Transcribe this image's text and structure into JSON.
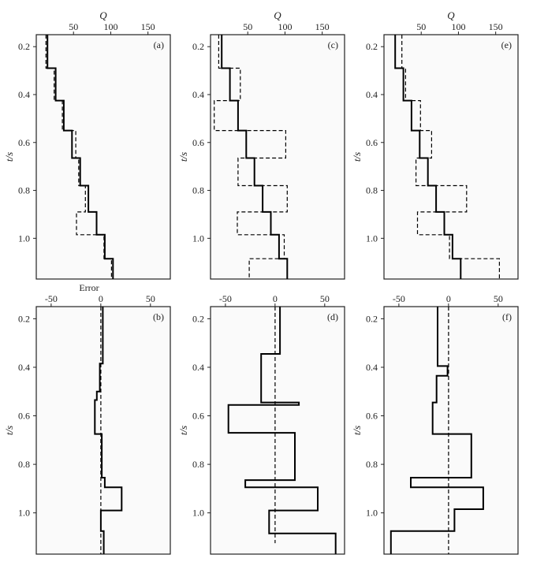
{
  "chart_data": [
    {
      "type": "line",
      "panel_label": "(a)",
      "xlabel": "Q",
      "ylabel": "t/s",
      "xlim": [
        0,
        180
      ],
      "xticks": [
        50,
        100,
        150
      ],
      "ylim": [
        1.17,
        0.15
      ],
      "yticks": [
        0.2,
        0.4,
        0.6,
        0.8,
        1.0
      ],
      "series": [
        {
          "style": "solid",
          "points": [
            [
              15,
              0.15
            ],
            [
              15,
              0.29
            ],
            [
              26,
              0.29
            ],
            [
              26,
              0.425
            ],
            [
              37,
              0.425
            ],
            [
              37,
              0.55
            ],
            [
              48,
              0.55
            ],
            [
              48,
              0.665
            ],
            [
              59,
              0.665
            ],
            [
              59,
              0.78
            ],
            [
              70,
              0.78
            ],
            [
              70,
              0.89
            ],
            [
              81,
              0.89
            ],
            [
              81,
              0.985
            ],
            [
              92,
              0.985
            ],
            [
              92,
              1.085
            ],
            [
              103,
              1.085
            ],
            [
              103,
              1.17
            ]
          ]
        },
        {
          "style": "dashed",
          "points": [
            [
              13,
              0.15
            ],
            [
              13,
              0.29
            ],
            [
              24,
              0.29
            ],
            [
              24,
              0.425
            ],
            [
              35,
              0.425
            ],
            [
              35,
              0.55
            ],
            [
              53,
              0.55
            ],
            [
              53,
              0.665
            ],
            [
              57,
              0.665
            ],
            [
              57,
              0.78
            ],
            [
              66,
              0.78
            ],
            [
              66,
              0.89
            ],
            [
              54,
              0.89
            ],
            [
              54,
              0.985
            ],
            [
              91,
              0.985
            ],
            [
              91,
              1.085
            ],
            [
              101,
              1.085
            ],
            [
              101,
              1.17
            ]
          ]
        }
      ]
    },
    {
      "type": "line",
      "panel_label": "(b)",
      "xlabel": "Error",
      "ylabel": "t/s",
      "xlim": [
        -65,
        70
      ],
      "xticks": [
        -50,
        0,
        50
      ],
      "ylim": [
        1.17,
        0.15
      ],
      "yticks": [
        0.2,
        0.4,
        0.6,
        0.8,
        1.0
      ],
      "series": [
        {
          "style": "solid",
          "points": [
            [
              2,
              0.15
            ],
            [
              2,
              0.385
            ],
            [
              -1,
              0.385
            ],
            [
              -1,
              0.5
            ],
            [
              -4,
              0.5
            ],
            [
              -4,
              0.535
            ],
            [
              -6,
              0.535
            ],
            [
              -6,
              0.675
            ],
            [
              1,
              0.675
            ],
            [
              1,
              0.855
            ],
            [
              4,
              0.855
            ],
            [
              4,
              0.895
            ],
            [
              21,
              0.895
            ],
            [
              21,
              0.99
            ],
            [
              0,
              0.99
            ],
            [
              0,
              1.075
            ],
            [
              3,
              1.075
            ],
            [
              3,
              1.17
            ]
          ]
        },
        {
          "style": "dashed",
          "points": [
            [
              0,
              0.15
            ],
            [
              0,
              1.17
            ]
          ]
        }
      ]
    },
    {
      "type": "line",
      "panel_label": "(c)",
      "xlabel": "Q",
      "ylabel": "t/s",
      "xlim": [
        0,
        180
      ],
      "xticks": [
        50,
        100,
        150
      ],
      "ylim": [
        1.17,
        0.15
      ],
      "yticks": [
        0.2,
        0.4,
        0.6,
        0.8,
        1.0
      ],
      "series": [
        {
          "style": "solid",
          "points": [
            [
              15,
              0.15
            ],
            [
              15,
              0.29
            ],
            [
              26,
              0.29
            ],
            [
              26,
              0.425
            ],
            [
              37,
              0.425
            ],
            [
              37,
              0.55
            ],
            [
              48,
              0.55
            ],
            [
              48,
              0.665
            ],
            [
              59,
              0.665
            ],
            [
              59,
              0.78
            ],
            [
              70,
              0.78
            ],
            [
              70,
              0.89
            ],
            [
              81,
              0.89
            ],
            [
              81,
              0.985
            ],
            [
              92,
              0.985
            ],
            [
              92,
              1.085
            ],
            [
              103,
              1.085
            ],
            [
              103,
              1.17
            ]
          ]
        },
        {
          "style": "dashed",
          "points": [
            [
              11,
              0.15
            ],
            [
              11,
              0.29
            ],
            [
              40,
              0.29
            ],
            [
              40,
              0.425
            ],
            [
              5,
              0.425
            ],
            [
              5,
              0.55
            ],
            [
              101,
              0.55
            ],
            [
              101,
              0.665
            ],
            [
              37,
              0.665
            ],
            [
              37,
              0.78
            ],
            [
              103,
              0.78
            ],
            [
              103,
              0.89
            ],
            [
              36,
              0.89
            ],
            [
              36,
              0.985
            ],
            [
              99,
              0.985
            ],
            [
              99,
              1.085
            ],
            [
              52,
              1.085
            ],
            [
              52,
              1.17
            ]
          ]
        }
      ]
    },
    {
      "type": "line",
      "panel_label": "(d)",
      "xlabel": "",
      "ylabel": "t/s",
      "xlim": [
        -65,
        70
      ],
      "xticks": [
        -50,
        0,
        50
      ],
      "ylim": [
        1.17,
        0.15
      ],
      "yticks": [
        0.2,
        0.4,
        0.6,
        0.8,
        1.0
      ],
      "series": [
        {
          "style": "solid",
          "points": [
            [
              5,
              0.15
            ],
            [
              5,
              0.345
            ],
            [
              -14,
              0.345
            ],
            [
              -14,
              0.545
            ],
            [
              24,
              0.545
            ],
            [
              24,
              0.555
            ],
            [
              -47,
              0.555
            ],
            [
              -47,
              0.67
            ],
            [
              20,
              0.67
            ],
            [
              20,
              0.865
            ],
            [
              -30,
              0.865
            ],
            [
              -30,
              0.895
            ],
            [
              43,
              0.895
            ],
            [
              43,
              0.99
            ],
            [
              -6,
              0.99
            ],
            [
              -6,
              1.085
            ],
            [
              61,
              1.085
            ],
            [
              61,
              1.17
            ]
          ]
        },
        {
          "style": "dashed",
          "points": [
            [
              0,
              0.15
            ],
            [
              0,
              1.125
            ]
          ]
        }
      ]
    },
    {
      "type": "line",
      "panel_label": "(e)",
      "xlabel": "Q",
      "ylabel": "t/s",
      "xlim": [
        0,
        180
      ],
      "xticks": [
        50,
        100,
        150
      ],
      "ylim": [
        1.17,
        0.15
      ],
      "yticks": [
        0.2,
        0.4,
        0.6,
        0.8,
        1.0
      ],
      "series": [
        {
          "style": "solid",
          "points": [
            [
              15,
              0.15
            ],
            [
              15,
              0.29
            ],
            [
              26,
              0.29
            ],
            [
              26,
              0.425
            ],
            [
              37,
              0.425
            ],
            [
              37,
              0.55
            ],
            [
              48,
              0.55
            ],
            [
              48,
              0.665
            ],
            [
              59,
              0.665
            ],
            [
              59,
              0.78
            ],
            [
              70,
              0.78
            ],
            [
              70,
              0.89
            ],
            [
              81,
              0.89
            ],
            [
              81,
              0.985
            ],
            [
              92,
              0.985
            ],
            [
              92,
              1.085
            ],
            [
              103,
              1.085
            ],
            [
              103,
              1.17
            ]
          ]
        },
        {
          "style": "dashed",
          "points": [
            [
              24,
              0.15
            ],
            [
              24,
              0.29
            ],
            [
              29,
              0.29
            ],
            [
              29,
              0.425
            ],
            [
              49,
              0.425
            ],
            [
              49,
              0.55
            ],
            [
              64,
              0.55
            ],
            [
              64,
              0.665
            ],
            [
              43,
              0.665
            ],
            [
              43,
              0.78
            ],
            [
              111,
              0.78
            ],
            [
              111,
              0.89
            ],
            [
              45,
              0.89
            ],
            [
              45,
              0.985
            ],
            [
              88,
              0.985
            ],
            [
              88,
              1.085
            ],
            [
              155,
              1.085
            ],
            [
              155,
              1.17
            ]
          ]
        }
      ]
    },
    {
      "type": "line",
      "panel_label": "(f)",
      "xlabel": "",
      "ylabel": "t/s",
      "xlim": [
        -65,
        70
      ],
      "xticks": [
        -50,
        0,
        50
      ],
      "ylim": [
        1.17,
        0.15
      ],
      "yticks": [
        0.2,
        0.4,
        0.6,
        0.8,
        1.0
      ],
      "series": [
        {
          "style": "solid",
          "points": [
            [
              -11,
              0.15
            ],
            [
              -11,
              0.395
            ],
            [
              -1,
              0.395
            ],
            [
              -1,
              0.435
            ],
            [
              -12,
              0.435
            ],
            [
              -12,
              0.545
            ],
            [
              -16,
              0.545
            ],
            [
              -16,
              0.675
            ],
            [
              23,
              0.675
            ],
            [
              23,
              0.855
            ],
            [
              -38,
              0.855
            ],
            [
              -38,
              0.895
            ],
            [
              35,
              0.895
            ],
            [
              35,
              0.985
            ],
            [
              6,
              0.985
            ],
            [
              6,
              1.075
            ],
            [
              -58,
              1.075
            ],
            [
              -58,
              1.17
            ]
          ]
        },
        {
          "style": "dashed",
          "points": [
            [
              0,
              0.15
            ],
            [
              0,
              1.17
            ]
          ]
        }
      ]
    }
  ]
}
